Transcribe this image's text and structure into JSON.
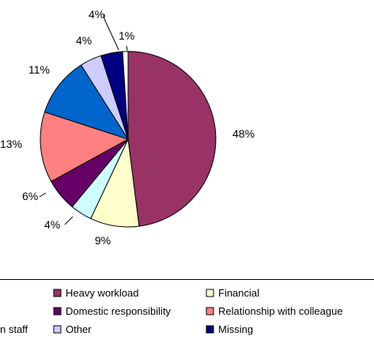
{
  "chart_data": {
    "type": "pie",
    "title": "",
    "legend_position": "bottom",
    "slices": [
      {
        "name": "Heavy workload",
        "value": 48,
        "label": "48%",
        "color": "#993366"
      },
      {
        "name": "Financial",
        "value": 9,
        "label": "9%",
        "color": "#FFFFCC"
      },
      {
        "name": "Other",
        "value": 4,
        "label": "4%",
        "color": "#CCFFFF"
      },
      {
        "name": "Domestic responsibility",
        "value": 6,
        "label": "6%",
        "color": "#660066"
      },
      {
        "name": "Relationship with colleague",
        "value": 13,
        "label": "13%",
        "color": "#FF8080"
      },
      {
        "name": "Relationship with staff",
        "value": 11,
        "label": "11%",
        "color": "#0066CC"
      },
      {
        "name": "Other",
        "value": 4,
        "label": "4%",
        "color": "#CCCCFF"
      },
      {
        "name": "Missing",
        "value": 4,
        "label": "4%",
        "color": "#000080"
      },
      {
        "name": "",
        "value": 1,
        "label": "1%",
        "color": "#FFFFFF"
      }
    ],
    "legend": [
      {
        "name": "Heavy workload",
        "color": "#993366"
      },
      {
        "name": "Financial",
        "color": "#FFFFCC"
      },
      {
        "name": "Domestic responsibility",
        "color": "#660066"
      },
      {
        "name": "Relationship with colleague",
        "color": "#FF8080"
      },
      {
        "name": "n staff",
        "color": "#0066CC"
      },
      {
        "name": "Other",
        "color": "#CCCCFF"
      },
      {
        "name": "Missing",
        "color": "#000080"
      }
    ]
  }
}
